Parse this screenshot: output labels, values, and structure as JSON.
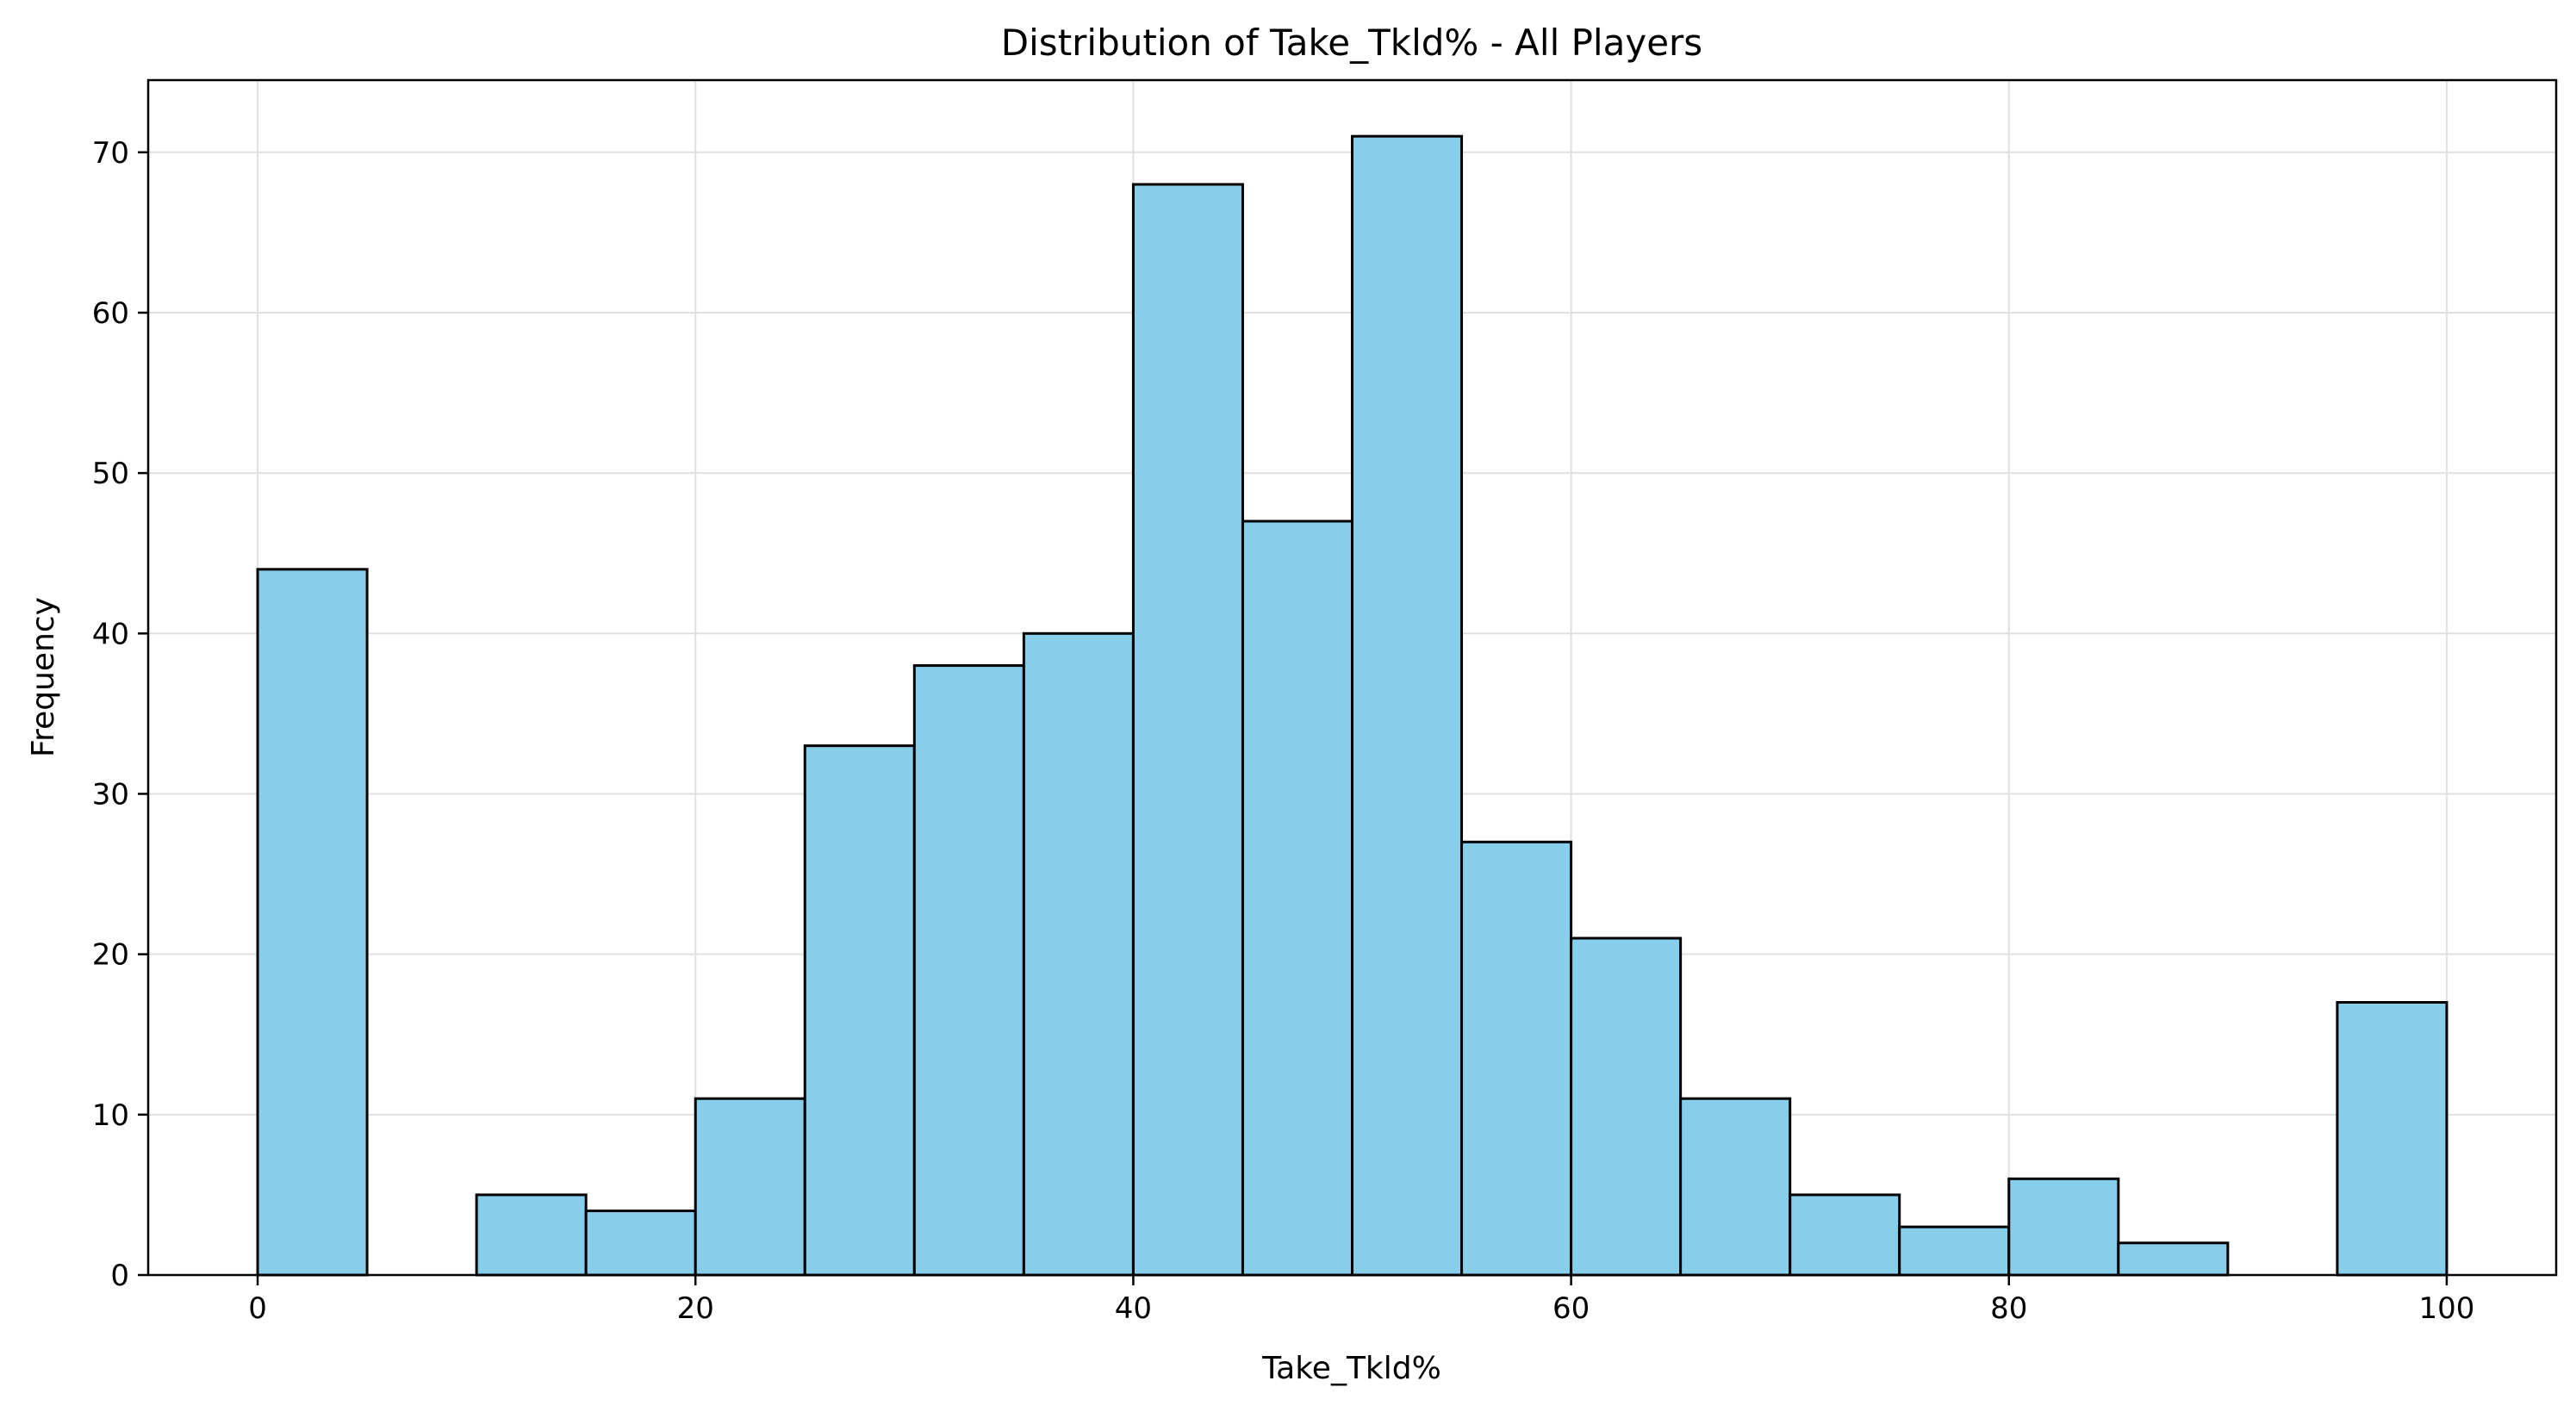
{
  "chart_data": {
    "type": "bar",
    "title": "Distribution of Take_Tkld% - All Players",
    "xlabel": "Take_Tkld%",
    "ylabel": "Frequency",
    "bin_edges": [
      0,
      5,
      10,
      15,
      20,
      25,
      30,
      35,
      40,
      45,
      50,
      55,
      60,
      65,
      70,
      75,
      80,
      85,
      90,
      95,
      100
    ],
    "values": [
      44,
      0,
      5,
      4,
      11,
      33,
      38,
      40,
      68,
      47,
      71,
      27,
      21,
      11,
      5,
      3,
      6,
      2,
      0,
      17
    ],
    "xlim": [
      -5,
      105
    ],
    "ylim": [
      0,
      74.5
    ],
    "xticks": [
      0,
      20,
      40,
      60,
      80,
      100
    ],
    "yticks": [
      0,
      10,
      20,
      30,
      40,
      50,
      60,
      70
    ],
    "grid": true,
    "colors": {
      "bar_fill": "#87CEEB",
      "bar_edge": "#000000",
      "grid": "#e0e0e0"
    }
  }
}
